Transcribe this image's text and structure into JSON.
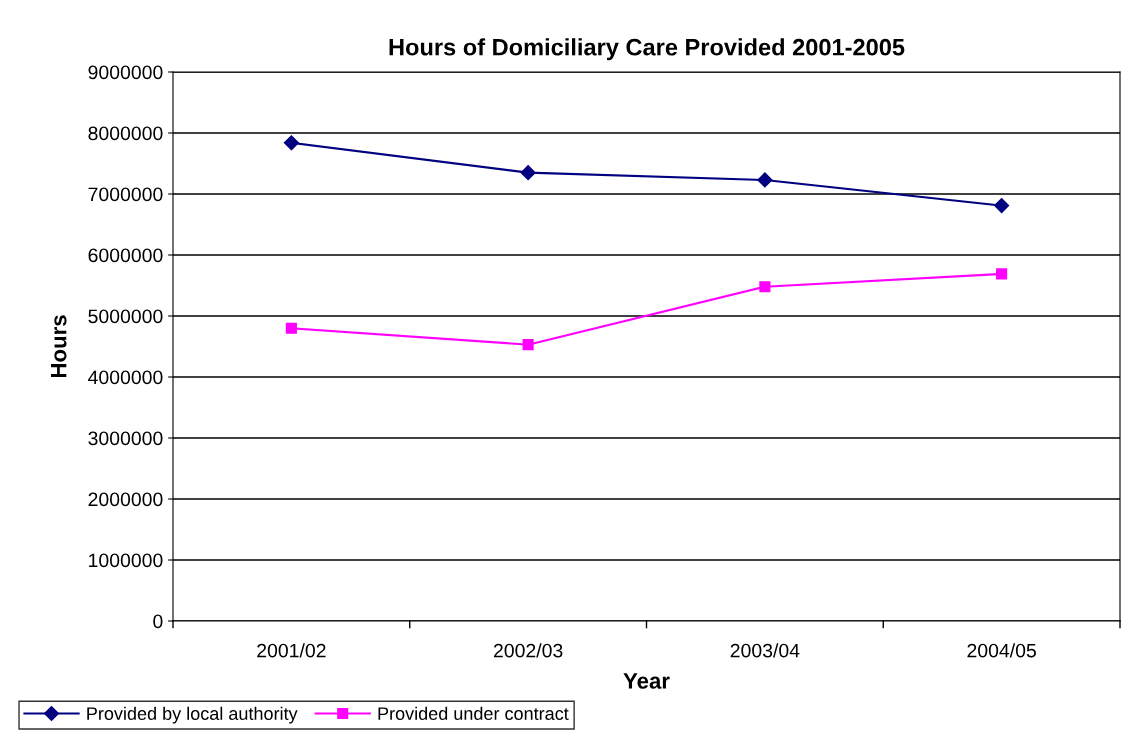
{
  "chart_data": {
    "type": "line",
    "title": "Hours of Domiciliary Care Provided 2001-2005",
    "xlabel": "Year",
    "ylabel": "Hours",
    "categories": [
      "2001/02",
      "2002/03",
      "2003/04",
      "2004/05"
    ],
    "series": [
      {
        "name": "Provided by local authority",
        "color": "#000080",
        "marker": "diamond",
        "values": [
          7840000,
          7350000,
          7230000,
          6810000
        ]
      },
      {
        "name": "Provided under contract",
        "color": "#ff00ff",
        "marker": "square",
        "values": [
          4800000,
          4530000,
          5480000,
          5690000
        ]
      }
    ],
    "ylim": [
      0,
      9000000
    ],
    "yticks": [
      0,
      1000000,
      2000000,
      3000000,
      4000000,
      5000000,
      6000000,
      7000000,
      8000000,
      9000000
    ],
    "grid": "y",
    "legend": "bottom left",
    "line_style": "solid"
  }
}
